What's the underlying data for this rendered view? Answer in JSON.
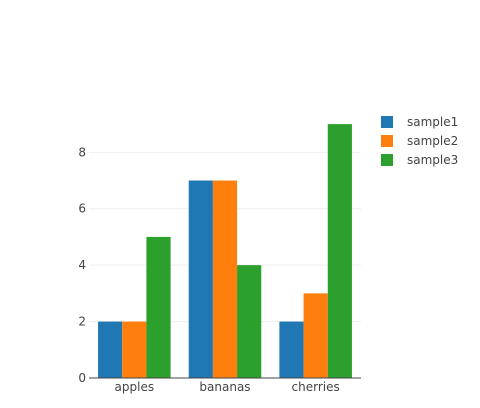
{
  "chart_data": {
    "type": "bar",
    "title": "",
    "xlabel": "",
    "ylabel": "",
    "categories": [
      "apples",
      "bananas",
      "cherries"
    ],
    "series": [
      {
        "name": "sample1",
        "color": "#1f77b4",
        "values": [
          2,
          7,
          2
        ]
      },
      {
        "name": "sample2",
        "color": "#ff7f0e",
        "values": [
          2,
          7,
          3
        ]
      },
      {
        "name": "sample3",
        "color": "#2ca02c",
        "values": [
          5,
          4,
          9
        ]
      }
    ],
    "ylim": [
      0,
      9.5
    ],
    "yticks": [
      0,
      2,
      4,
      6,
      8
    ],
    "grid": true,
    "legend_position": "top-right"
  }
}
